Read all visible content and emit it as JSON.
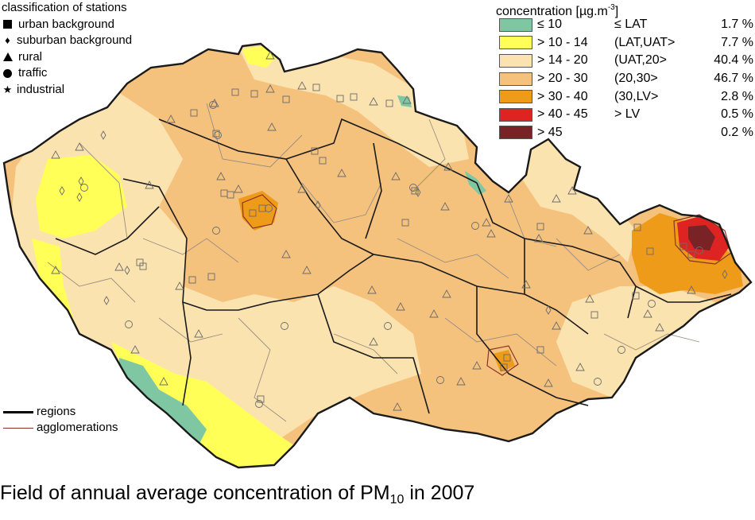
{
  "stations_legend": {
    "title": "classification of stations",
    "items": [
      {
        "label": "urban background",
        "symbol": "square"
      },
      {
        "label": "suburban background",
        "symbol": "diamond"
      },
      {
        "label": "rural",
        "symbol": "triangle"
      },
      {
        "label": "traffic",
        "symbol": "circle"
      },
      {
        "label": "industrial",
        "symbol": "star"
      }
    ]
  },
  "concentration_legend": {
    "title": "concentration [µg.m",
    "title_exp": "-3",
    "title_close": "]",
    "classes": [
      {
        "range": "≤ 10",
        "label": "≤ LAT",
        "percent": "1.7 %",
        "color": "#7fc7a3"
      },
      {
        "range": "> 10 - 14",
        "label": "(LAT,UAT>",
        "percent": "7.7 %",
        "color": "#ffff57"
      },
      {
        "range": "> 14 - 20",
        "label": "(UAT,20>",
        "percent": "40.4 %",
        "color": "#fbe3b0"
      },
      {
        "range": "> 20 - 30",
        "label": "(20,30>",
        "percent": "46.7 %",
        "color": "#f5c27e"
      },
      {
        "range": "> 30 - 40",
        "label": "(30,LV>",
        "percent": "2.8 %",
        "color": "#ee9b1a"
      },
      {
        "range": "> 40 - 45",
        "label": "> LV",
        "percent": "0.5 %",
        "color": "#dd2422"
      },
      {
        "range": "> 45",
        "label": "",
        "percent": "0.2 %",
        "color": "#7a2326"
      }
    ]
  },
  "boundary_legend": {
    "regions_label": "regions",
    "agglomerations_label": "agglomerations"
  },
  "caption": {
    "text": "Field of annual average concentration of PM",
    "subscript": "10",
    "suffix": " in 2007"
  },
  "map_colors": {
    "base": "#f5c27e",
    "light": "#fbe3b0",
    "low": "#ffff57",
    "lowest": "#7fc7a3",
    "high": "#ee9b1a",
    "over_lv": "#dd2422",
    "max": "#7a2326",
    "region_border": "#1a1a1a",
    "district_border": "#9a8d80",
    "agglomeration_border": "#8a3324"
  }
}
